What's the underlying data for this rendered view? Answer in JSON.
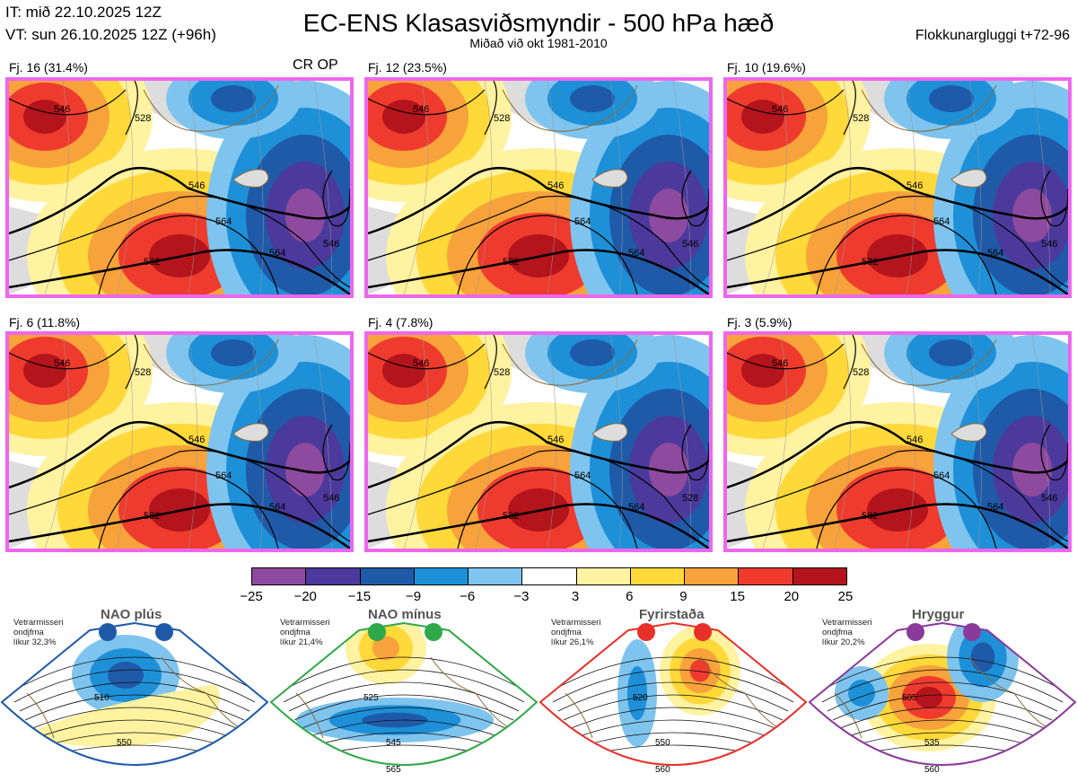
{
  "header": {
    "it_line": "IT: mið 22.10.2025 12Z",
    "vt_line": "VT: sun 26.10.2025 12Z  (+96h)",
    "title": "EC-ENS Klasasviðsmyndir - 500 hPa hæð",
    "subtitle": "Miðað við okt 1981-2010",
    "window": "Flokkunargluggi t+72-96"
  },
  "panels": [
    {
      "label": "Fj. 16 (31.4%)",
      "tag": "CR OP",
      "contours": [
        "546",
        "564",
        "582",
        "528",
        "546",
        "564",
        "546"
      ]
    },
    {
      "label": "Fj. 12 (23.5%)",
      "tag": "",
      "contours": [
        "546",
        "564",
        "582",
        "528",
        "546",
        "564",
        "546"
      ]
    },
    {
      "label": "Fj. 10 (19.6%)",
      "tag": "",
      "contours": [
        "546",
        "564",
        "582",
        "528",
        "546",
        "564",
        "546"
      ]
    },
    {
      "label": "Fj. 6 (11.8%)",
      "tag": "",
      "contours": [
        "546",
        "564",
        "582",
        "528",
        "546",
        "564",
        "546"
      ]
    },
    {
      "label": "Fj. 4 (7.8%)",
      "tag": "",
      "contours": [
        "546",
        "564",
        "582",
        "528",
        "546",
        "564",
        "528"
      ]
    },
    {
      "label": "Fj. 3 (5.9%)",
      "tag": "",
      "contours": [
        "546",
        "564",
        "582",
        "528",
        "546",
        "564",
        "546"
      ]
    }
  ],
  "colorbar": {
    "ticks": [
      "−25",
      "−20",
      "−15",
      "−9",
      "−6",
      "−3",
      "3",
      "6",
      "9",
      "15",
      "20",
      "25"
    ],
    "colors": [
      "#8e4a9e",
      "#4b3a9c",
      "#1f5aa8",
      "#1e90d8",
      "#7ec4ee",
      "#ffffff",
      "#fff2a0",
      "#ffd83a",
      "#f7a23a",
      "#ee3b2e",
      "#b4141c"
    ]
  },
  "regimes": [
    {
      "title": "NAO plús",
      "info": [
        "Vetrarmisseri",
        "ondjfma",
        "líkur 32,3%"
      ],
      "color": "#1f5aa8",
      "contours": [
        "510",
        "550"
      ]
    },
    {
      "title": "NAO mínus",
      "info": [
        "Vetrarmisseri",
        "ondjfma",
        "líkur 21,4%"
      ],
      "color": "#2fa84a",
      "contours": [
        "525",
        "545",
        "565"
      ]
    },
    {
      "title": "Fyrirstaða",
      "info": [
        "Vetrarmisseri",
        "ondjfma",
        "líkur 26,1%"
      ],
      "color": "#e8302a",
      "contours": [
        "520",
        "550",
        "560"
      ]
    },
    {
      "title": "Hryggur",
      "info": [
        "Vetrarmisseri",
        "ondjfma",
        "líkur 20,2%"
      ],
      "color": "#8a3a9a",
      "contours": [
        "505",
        "535",
        "560"
      ]
    }
  ]
}
